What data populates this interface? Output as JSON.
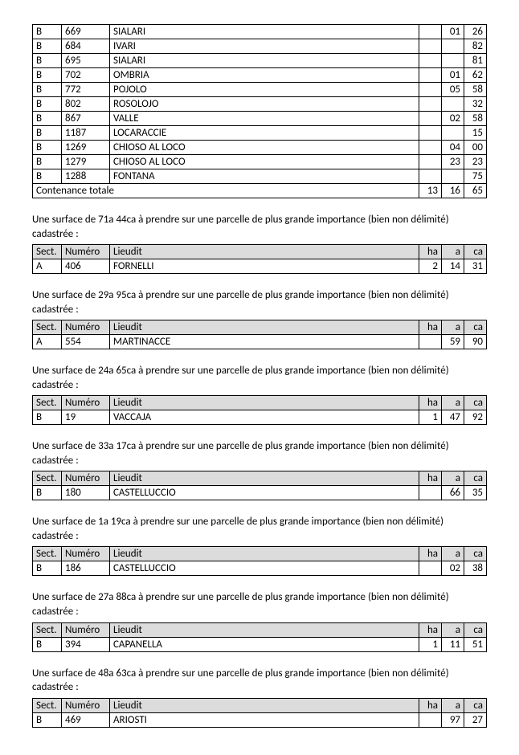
{
  "headers": {
    "sect": "Sect.",
    "numero": "Numéro",
    "lieudit": "Lieudit",
    "ha": "ha",
    "a": "a",
    "ca": "ca"
  },
  "topTable": {
    "rows": [
      {
        "sect": "B",
        "num": "669",
        "lieu": "SIALARI",
        "ha": "",
        "a": "01",
        "ca": "26"
      },
      {
        "sect": "B",
        "num": "684",
        "lieu": "IVARI",
        "ha": "",
        "a": "",
        "ca": "82"
      },
      {
        "sect": "B",
        "num": "695",
        "lieu": "SIALARI",
        "ha": "",
        "a": "",
        "ca": "81"
      },
      {
        "sect": "B",
        "num": "702",
        "lieu": "OMBRIA",
        "ha": "",
        "a": "01",
        "ca": "62"
      },
      {
        "sect": "B",
        "num": "772",
        "lieu": "POJOLO",
        "ha": "",
        "a": "05",
        "ca": "58"
      },
      {
        "sect": "B",
        "num": "802",
        "lieu": "ROSOLOJO",
        "ha": "",
        "a": "",
        "ca": "32"
      },
      {
        "sect": "B",
        "num": "867",
        "lieu": "VALLE",
        "ha": "",
        "a": "02",
        "ca": "58"
      },
      {
        "sect": "B",
        "num": "1187",
        "lieu": "LOCARACCIE",
        "ha": "",
        "a": "",
        "ca": "15"
      },
      {
        "sect": "B",
        "num": "1269",
        "lieu": "CHIOSO AL LOCO",
        "ha": "",
        "a": "04",
        "ca": "00"
      },
      {
        "sect": "B",
        "num": "1279",
        "lieu": "CHIOSO AL LOCO",
        "ha": "",
        "a": "23",
        "ca": "23"
      },
      {
        "sect": "B",
        "num": "1288",
        "lieu": "FONTANA",
        "ha": "",
        "a": "",
        "ca": "75"
      }
    ],
    "totalLabel": "Contenance totale",
    "total": {
      "ha": "13",
      "a": "16",
      "ca": "65"
    }
  },
  "sections": [
    {
      "intro": "Une surface de 71a 44ca à prendre sur une parcelle de plus grande importance (bien non délimité) cadastrée :",
      "row": {
        "sect": "A",
        "num": "406",
        "lieu": "FORNELLI",
        "ha": "2",
        "a": "14",
        "ca": "31"
      }
    },
    {
      "intro": "Une surface de 29a 95ca à prendre sur une parcelle de plus grande importance (bien non délimité) cadastrée :",
      "row": {
        "sect": "A",
        "num": "554",
        "lieu": "MARTINACCE",
        "ha": "",
        "a": "59",
        "ca": "90"
      }
    },
    {
      "intro": "Une surface de 24a 65ca à prendre sur une parcelle de plus grande importance (bien non délimité) cadastrée :",
      "row": {
        "sect": "B",
        "num": "19",
        "lieu": "VACCAJA",
        "ha": "1",
        "a": "47",
        "ca": "92"
      }
    },
    {
      "intro": "Une surface de 33a 17ca à prendre sur une parcelle de plus grande importance (bien non délimité) cadastrée :",
      "row": {
        "sect": "B",
        "num": "180",
        "lieu": "CASTELLUCCIO",
        "ha": "",
        "a": "66",
        "ca": "35"
      }
    },
    {
      "intro": "Une surface de 1a 19ca à prendre sur une parcelle de plus grande importance (bien non délimité) cadastrée :",
      "row": {
        "sect": "B",
        "num": "186",
        "lieu": "CASTELLUCCIO",
        "ha": "",
        "a": "02",
        "ca": "38"
      }
    },
    {
      "intro": "Une surface de 27a 88ca à prendre sur une parcelle de plus grande importance (bien non délimité) cadastrée :",
      "row": {
        "sect": "B",
        "num": "394",
        "lieu": "CAPANELLA",
        "ha": "1",
        "a": "11",
        "ca": "51"
      }
    },
    {
      "intro": "Une surface de 48a 63ca à prendre sur une parcelle de plus grande importance (bien non délimité) cadastrée :",
      "row": {
        "sect": "B",
        "num": "469",
        "lieu": "ARIOSTI",
        "ha": "",
        "a": "97",
        "ca": "27"
      }
    }
  ]
}
